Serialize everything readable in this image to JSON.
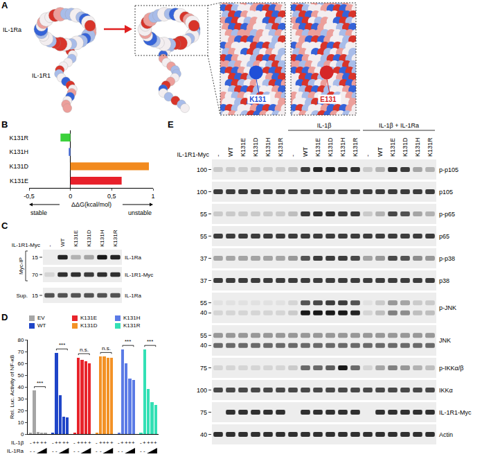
{
  "figure": {
    "panel_a": {
      "panel": "A",
      "ligand": "IL-1Ra",
      "receptor": "IL-1R1",
      "zoom_labels": [
        {
          "text": "K131",
          "color": "#1f4fd8"
        },
        {
          "text": "E131",
          "color": "#d62728"
        }
      ]
    },
    "panel_c": {
      "panel": "C",
      "lane_header": "IL-1R1-Myc",
      "lanes": [
        "-",
        "WT",
        "K131E",
        "K131D",
        "K131H",
        "K131R"
      ],
      "sections": [
        {
          "label": "Myc-IP",
          "rows": [
            {
              "name": "IL-1Ra",
              "mw": [
                15
              ],
              "bands": [
                [
                  0,
                  0.9,
                  0.25,
                  0.3,
                  0.95,
                  0.9
                ]
              ]
            },
            {
              "name": "IL-1R1-Myc",
              "mw": [
                70
              ],
              "bands": [
                [
                  0.1,
                  0.85,
                  0.85,
                  0.8,
                  0.85,
                  0.85
                ]
              ]
            }
          ]
        },
        {
          "label": "Sup.",
          "rows": [
            {
              "name": "IL-1Ra",
              "mw": [
                15
              ],
              "bands": [
                [
                  0.7,
                  0.7,
                  0.7,
                  0.7,
                  0.7,
                  0.7
                ]
              ]
            }
          ]
        }
      ]
    },
    "panel_e": {
      "panel": "E",
      "lane_header": "IL-1R1-Myc",
      "lane_groups": [
        {
          "lanes": [
            "-",
            "WT",
            "K131E",
            "K131D",
            "K131H",
            "K131R"
          ]
        },
        {
          "treatment": "IL-1β",
          "lanes": [
            "-",
            "WT",
            "K131E",
            "K131D",
            "K131H",
            "K131R"
          ]
        },
        {
          "treatment": "IL-1β + IL-1Ra",
          "lanes": [
            "-",
            "WT",
            "K131E",
            "K131D",
            "K131H",
            "K131R"
          ]
        }
      ],
      "rows": [
        {
          "name": "p-p105",
          "mw": [
            100
          ],
          "bands": [
            [
              0.15,
              0.15,
              0.15,
              0.15,
              0.15,
              0.15,
              0.2,
              0.8,
              0.9,
              0.9,
              0.85,
              0.85,
              0.15,
              0.25,
              0.85,
              0.8,
              0.3,
              0.25
            ]
          ]
        },
        {
          "name": "p105",
          "mw": [
            100
          ],
          "bands": [
            [
              0.8,
              0.8,
              0.8,
              0.8,
              0.8,
              0.8,
              0.8,
              0.8,
              0.8,
              0.8,
              0.8,
              0.8,
              0.8,
              0.8,
              0.8,
              0.8,
              0.8,
              0.8
            ]
          ]
        },
        {
          "name": "p-p65",
          "mw": [
            55
          ],
          "bands": [
            [
              0.15,
              0.15,
              0.15,
              0.15,
              0.15,
              0.15,
              0.2,
              0.8,
              0.85,
              0.85,
              0.8,
              0.8,
              0.15,
              0.25,
              0.75,
              0.7,
              0.3,
              0.25
            ]
          ]
        },
        {
          "name": "p65",
          "mw": [
            55
          ],
          "bands": [
            [
              0.8,
              0.8,
              0.8,
              0.8,
              0.8,
              0.8,
              0.8,
              0.8,
              0.8,
              0.8,
              0.8,
              0.8,
              0.8,
              0.8,
              0.8,
              0.8,
              0.8,
              0.8
            ]
          ]
        },
        {
          "name": "p-p38",
          "mw": [
            37
          ],
          "bands": [
            [
              0.3,
              0.3,
              0.35,
              0.35,
              0.35,
              0.3,
              0.4,
              0.7,
              0.8,
              0.8,
              0.8,
              0.75,
              0.35,
              0.4,
              0.75,
              0.7,
              0.45,
              0.4
            ]
          ]
        },
        {
          "name": "p38",
          "mw": [
            37
          ],
          "bands": [
            [
              0.8,
              0.8,
              0.8,
              0.8,
              0.8,
              0.8,
              0.8,
              0.8,
              0.8,
              0.8,
              0.8,
              0.8,
              0.8,
              0.8,
              0.8,
              0.8,
              0.8,
              0.8
            ]
          ]
        },
        {
          "name": "p-JNK",
          "mw": [
            55,
            40
          ],
          "bands": [
            [
              0.05,
              0.05,
              0.05,
              0.05,
              0.05,
              0.05,
              0.1,
              0.7,
              0.75,
              0.8,
              0.8,
              0.7,
              0.05,
              0.15,
              0.4,
              0.35,
              0.15,
              0.15
            ],
            [
              0.1,
              0.1,
              0.1,
              0.1,
              0.1,
              0.1,
              0.15,
              0.95,
              0.95,
              0.95,
              0.95,
              0.9,
              0.1,
              0.2,
              0.5,
              0.45,
              0.2,
              0.2
            ]
          ]
        },
        {
          "name": "JNK",
          "mw": [
            55,
            40
          ],
          "bands": [
            [
              0.4,
              0.4,
              0.4,
              0.4,
              0.4,
              0.4,
              0.4,
              0.4,
              0.4,
              0.4,
              0.4,
              0.4,
              0.4,
              0.4,
              0.4,
              0.4,
              0.4,
              0.4
            ],
            [
              0.6,
              0.6,
              0.6,
              0.6,
              0.6,
              0.6,
              0.6,
              0.6,
              0.6,
              0.6,
              0.6,
              0.6,
              0.6,
              0.6,
              0.6,
              0.6,
              0.6,
              0.6
            ]
          ]
        },
        {
          "name": "p-IKKα/β",
          "mw": [
            75
          ],
          "bands": [
            [
              0.1,
              0.1,
              0.1,
              0.1,
              0.1,
              0.1,
              0.15,
              0.6,
              0.6,
              0.65,
              0.95,
              0.6,
              0.1,
              0.3,
              0.5,
              0.4,
              0.25,
              0.2
            ]
          ]
        },
        {
          "name": "IKKα",
          "mw": [
            100
          ],
          "bands": [
            [
              0.75,
              0.75,
              0.75,
              0.75,
              0.75,
              0.75,
              0.75,
              0.75,
              0.75,
              0.75,
              0.75,
              0.75,
              0.75,
              0.75,
              0.75,
              0.75,
              0.75,
              0.75
            ]
          ]
        },
        {
          "name": "IL-1R1-Myc",
          "mw": [
            75
          ],
          "bands": [
            [
              0,
              0.85,
              0.85,
              0.85,
              0.85,
              0.85,
              0,
              0.85,
              0.85,
              0.85,
              0.85,
              0.85,
              0,
              0.85,
              0.85,
              0.85,
              0.85,
              0.85
            ]
          ]
        },
        {
          "name": "Actin",
          "mw": [
            40
          ],
          "bands": [
            [
              0.85,
              0.85,
              0.85,
              0.85,
              0.85,
              0.85,
              0.85,
              0.85,
              0.85,
              0.85,
              0.85,
              0.85,
              0.85,
              0.85,
              0.85,
              0.85,
              0.85,
              0.85
            ]
          ]
        }
      ]
    }
  },
  "chart_data": [
    {
      "panel": "B",
      "type": "bar",
      "orientation": "horizontal",
      "categories": [
        "K131R",
        "K131H",
        "K131D",
        "K131E"
      ],
      "values": [
        -0.12,
        -0.02,
        0.95,
        0.62
      ],
      "colors": [
        "#3bd13b",
        "#4a6fd9",
        "#f28a1e",
        "#e8202a"
      ],
      "xlim": [
        -0.5,
        1.0
      ],
      "xticks": [
        {
          "value": -0.5,
          "label": "-0,5"
        },
        0,
        {
          "value": 0.5,
          "label": "0,5"
        },
        1
      ],
      "x_label": "ΔΔG(kcal/mol)",
      "annotations": [
        "stable",
        "unstable"
      ],
      "grid": false
    },
    {
      "panel": "D",
      "type": "bar",
      "y_label": "Rel. Luc. Activity of NF-κB",
      "ylim": [
        0,
        80
      ],
      "yticks": [
        0,
        10,
        20,
        30,
        40,
        50,
        60,
        70,
        80
      ],
      "tick_labels": "y",
      "legend": "top",
      "grid": false,
      "series": [
        {
          "name": "EV",
          "color": "#a6a6a6",
          "values": [
            1,
            37,
            1.5,
            1,
            1
          ]
        },
        {
          "name": "WT",
          "color": "#1f45c8",
          "values": [
            1,
            69,
            33,
            15,
            14
          ]
        },
        {
          "name": "K131E",
          "color": "#e8242b",
          "values": [
            1,
            65,
            63,
            62,
            60
          ]
        },
        {
          "name": "K131D",
          "color": "#f39226",
          "values": [
            1,
            66,
            66,
            65,
            65
          ]
        },
        {
          "name": "K131H",
          "color": "#5b7be6",
          "values": [
            1,
            72,
            60,
            47,
            46
          ]
        },
        {
          "name": "K131R",
          "color": "#33e0b5",
          "values": [
            1,
            72,
            38,
            27,
            25
          ]
        }
      ],
      "conditions": [
        {
          "label": "IL-1β",
          "marks": [
            "-",
            "+",
            "+",
            "+",
            "+"
          ]
        },
        {
          "label": "IL-1Ra",
          "marks": [
            "-",
            "-",
            null,
            null,
            null
          ]
        }
      ],
      "annotations": [
        {
          "series": "EV",
          "text": "***"
        },
        {
          "series": "WT",
          "text": "***"
        },
        {
          "series": "K131E",
          "text": "n.s."
        },
        {
          "series": "K131D",
          "text": "n.s."
        },
        {
          "series": "K131H",
          "text": "***"
        },
        {
          "series": "K131R",
          "text": "***"
        }
      ]
    }
  ]
}
